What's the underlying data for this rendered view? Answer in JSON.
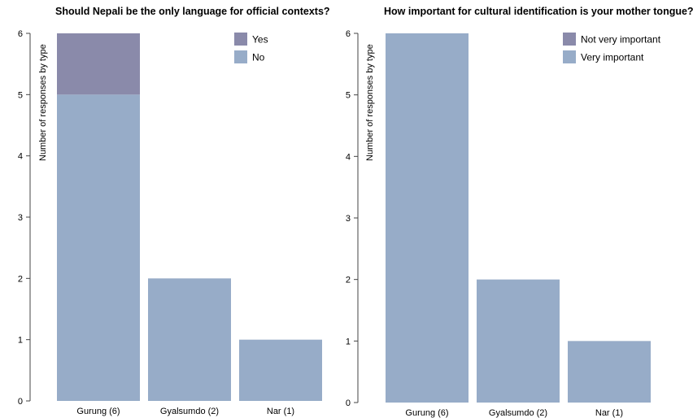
{
  "chart_data": [
    {
      "type": "bar",
      "stacked": true,
      "title": "Should Nepali be the only language for official contexts?",
      "ylabel": "Number of responses by type",
      "xlabel": "",
      "ylim": [
        0,
        6
      ],
      "yticks": [
        0,
        1,
        2,
        3,
        4,
        5,
        6
      ],
      "categories": [
        "Gurung (6)",
        "Gyalsumdo (2)",
        "Nar (1)"
      ],
      "series": [
        {
          "name": "Yes",
          "values": [
            1,
            0,
            0
          ],
          "color": "#8a8aaa"
        },
        {
          "name": "No",
          "values": [
            5,
            2,
            1
          ],
          "color": "#97acc8"
        }
      ],
      "legend_order": [
        "Yes",
        "No"
      ],
      "legend_position": "top-right",
      "grid": false
    },
    {
      "type": "bar",
      "stacked": true,
      "title": "How important for cultural identification is your mother tongue?",
      "ylabel": "Number of responses by type",
      "xlabel": "",
      "ylim": [
        0,
        6
      ],
      "yticks": [
        0,
        1,
        2,
        3,
        4,
        5,
        6
      ],
      "categories": [
        "Gurung (6)",
        "Gyalsumdo (2)",
        "Nar (1)"
      ],
      "series": [
        {
          "name": "Not very important",
          "values": [
            0,
            0,
            0
          ],
          "color": "#8a8aaa"
        },
        {
          "name": "Very important",
          "values": [
            6,
            2,
            1
          ],
          "color": "#97acc8"
        }
      ],
      "legend_order": [
        "Not very important",
        "Very important"
      ],
      "legend_position": "top-right",
      "grid": false
    }
  ]
}
